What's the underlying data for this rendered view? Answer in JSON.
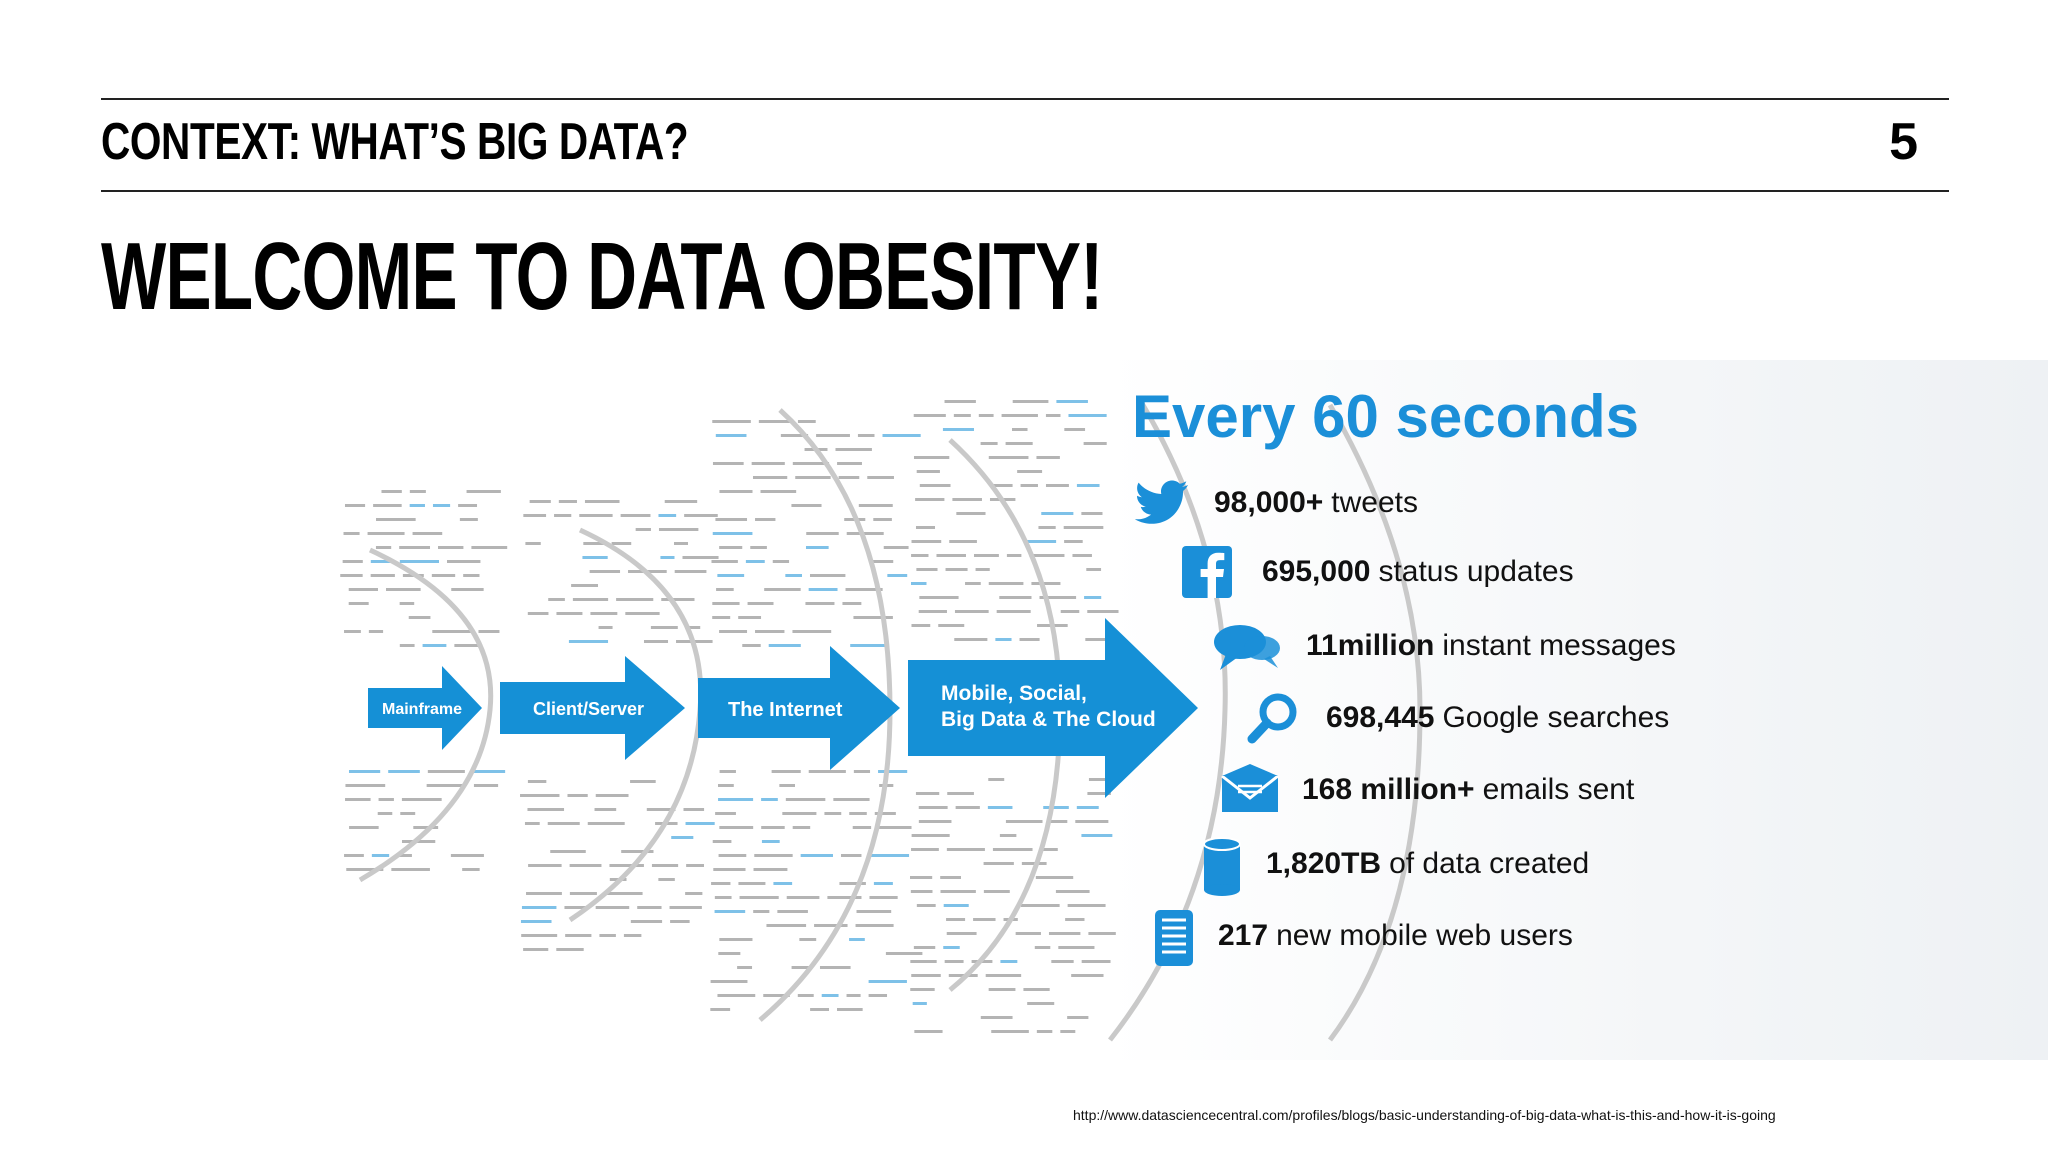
{
  "header": {
    "section_title": "CONTEXT: WHAT’S BIG DATA?",
    "page_number": "5"
  },
  "slide_title": "WELCOME TO DATA OBESITY!",
  "infographic": {
    "eras": [
      {
        "label": "Mainframe"
      },
      {
        "label": "Client/Server"
      },
      {
        "label": "The Internet"
      },
      {
        "label_line1": "Mobile, Social,",
        "label_line2": "Big Data & The Cloud"
      }
    ],
    "heading": "Every 60 seconds",
    "stats": [
      {
        "value": "98,000+",
        "text": "tweets",
        "icon": "twitter-bird-icon"
      },
      {
        "value": "695,000",
        "text": "status updates",
        "icon": "facebook-icon"
      },
      {
        "value": "11million",
        "text": "instant messages",
        "icon": "chat-bubbles-icon"
      },
      {
        "value": "698,445",
        "text": "Google searches",
        "icon": "search-icon"
      },
      {
        "value": "168 million+",
        "text": "emails sent",
        "icon": "envelope-icon"
      },
      {
        "value": "1,820TB",
        "text": "of data created",
        "icon": "database-icon"
      },
      {
        "value": "217",
        "text": "new mobile web users",
        "icon": "mobile-list-icon"
      }
    ],
    "colors": {
      "accent": "#1b8fd8",
      "arrow": "#1590d6"
    }
  },
  "footer": {
    "source_url": "http://www.datasciencecentral.com/profiles/blogs/basic-understanding-of-big-data-what-is-this-and-how-it-is-going"
  }
}
